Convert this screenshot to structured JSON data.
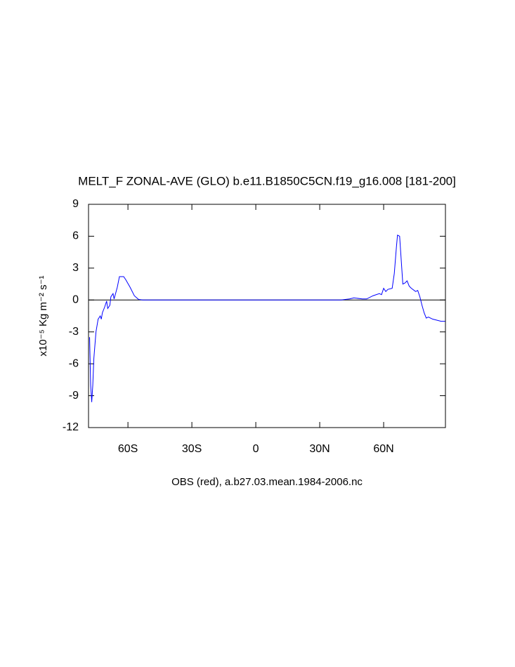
{
  "chart_data": {
    "type": "line",
    "title": "MELT_F ZONAL-AVE (GLO) b.e11.B1850C5CN.f19_g16.008 [181-200]",
    "xlabel": "OBS (red), a.b27.03.mean.1984-2006.nc",
    "ylabel": "x10⁻⁵ Kg m⁻² s⁻¹",
    "xlim": [
      -78.5,
      89
    ],
    "ylim": [
      -12,
      9
    ],
    "xticks": [
      {
        "value": -60,
        "label": "60S"
      },
      {
        "value": -30,
        "label": "30S"
      },
      0,
      {
        "value": 30,
        "label": "30N"
      },
      {
        "value": 60,
        "label": "60N"
      }
    ],
    "yticks": [
      -12,
      -9,
      -6,
      -3,
      0,
      3,
      6,
      9
    ],
    "hline": 0,
    "x": [
      -78,
      -77.5,
      -77,
      -76.5,
      -76,
      -75,
      -74,
      -73,
      -72.5,
      -72,
      -71,
      -70,
      -69.5,
      -68.5,
      -68,
      -67,
      -66.5,
      -65,
      -64,
      -62,
      -61,
      -59,
      -57,
      -55,
      -53,
      -40,
      0,
      40,
      44,
      46,
      50,
      52,
      55,
      58,
      59,
      60,
      61,
      62,
      64,
      65,
      66,
      66.5,
      67.5,
      68,
      69,
      70,
      71,
      72,
      73,
      75,
      76,
      77,
      78,
      79,
      80,
      81,
      83,
      87,
      89
    ],
    "series": [
      {
        "color": "#0000ff",
        "values": [
          -3.5,
          -8,
          -9.6,
          -8,
          -5.5,
          -3,
          -1.8,
          -1.5,
          -1.8,
          -1.2,
          -0.7,
          -0.1,
          -0.8,
          -0.5,
          0.3,
          0.6,
          0.1,
          1.2,
          2.2,
          2.2,
          1.9,
          1.2,
          0.4,
          0.05,
          0,
          0,
          0,
          0,
          0.1,
          0.2,
          0.1,
          0.1,
          0.4,
          0.6,
          0.5,
          1.1,
          0.8,
          1.0,
          1.1,
          2.5,
          5.0,
          6.1,
          6.0,
          4.5,
          1.5,
          1.6,
          1.8,
          1.3,
          1.1,
          0.8,
          0.9,
          0.3,
          -0.5,
          -1.2,
          -1.7,
          -1.6,
          -1.8,
          -2.0,
          -2.0
        ]
      }
    ]
  }
}
